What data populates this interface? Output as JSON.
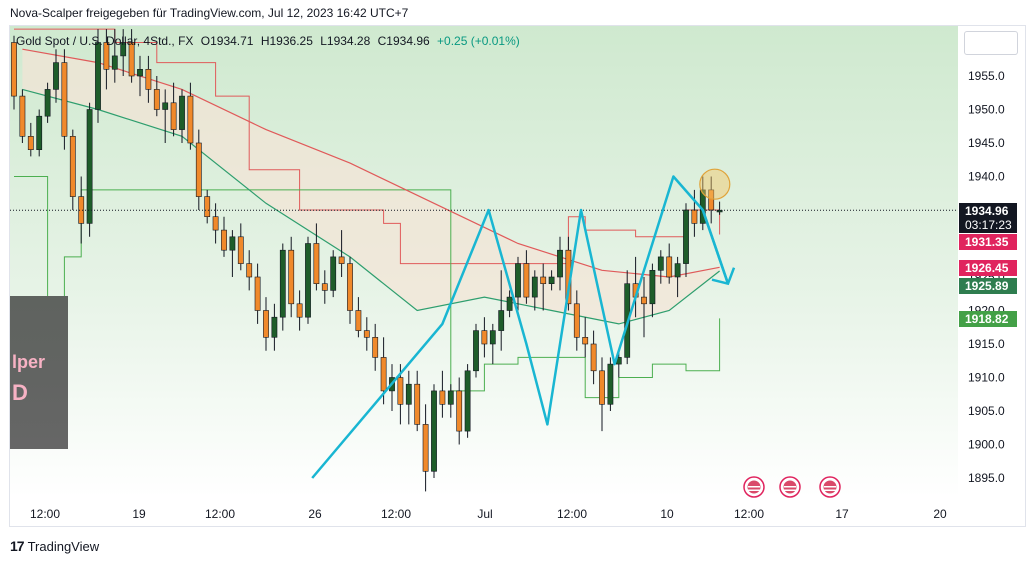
{
  "header": "Nova-Scalper freigegeben für TradingView.com, Jul 12, 2023 16:42 UTC+7",
  "legend": {
    "symbol": "Gold Spot / U.S. Dollar, 4Std., FX",
    "open": "O1934.71",
    "high": "H1936.25",
    "low": "L1934.28",
    "close": "C1934.96",
    "change": "+0.25 (+0.01%)"
  },
  "footer": {
    "logo": "17",
    "brand": "TradingView"
  },
  "watermark": {
    "line1": "lper",
    "line2": "D"
  },
  "colors": {
    "up": "#1e5d2a",
    "down": "#f0892b",
    "wick": "#131722",
    "pattern": "#19b6d2",
    "ma_red": "#e05a5a",
    "ma_green": "#2e9e6e",
    "label_red": "#e0245e",
    "label_darkgreen": "#2e7d4f",
    "label_green": "#43a047",
    "label_black": "#131722",
    "highlight": "#f5c563"
  },
  "chart_data": {
    "type": "candlestick",
    "symbol": "XAUUSD",
    "timeframe": "4H",
    "ylim": [
      1891,
      1962
    ],
    "yticks": [
      1955,
      1950,
      1945,
      1940,
      1935,
      1930,
      1925,
      1920,
      1915,
      1910,
      1905,
      1900,
      1895
    ],
    "xticks": [
      "12:00",
      "19",
      "12:00",
      "26",
      "12:00",
      "Jul",
      "12:00",
      "10",
      "12:00",
      "17",
      "20"
    ],
    "price_labels": [
      {
        "text": "1934.96",
        "sub": "03:17:23",
        "value": 1934.96,
        "color": "label_black"
      },
      {
        "text": "1931.35",
        "value": 1931.35,
        "color": "label_red"
      },
      {
        "text": "1926.45",
        "value": 1926.45,
        "color": "label_red"
      },
      {
        "text": "1925.89",
        "value": 1925.89,
        "color": "label_darkgreen"
      },
      {
        "text": "1918.82",
        "value": 1918.82,
        "color": "label_green"
      }
    ],
    "candles": [
      [
        1960,
        1961,
        1950,
        1952
      ],
      [
        1952,
        1953,
        1945,
        1946
      ],
      [
        1946,
        1948,
        1943,
        1944
      ],
      [
        1944,
        1950,
        1943,
        1949
      ],
      [
        1949,
        1954,
        1948,
        1953
      ],
      [
        1953,
        1959,
        1951,
        1957
      ],
      [
        1957,
        1959,
        1944,
        1946
      ],
      [
        1946,
        1947,
        1935,
        1937
      ],
      [
        1937,
        1940,
        1930,
        1933
      ],
      [
        1933,
        1951,
        1931,
        1950
      ],
      [
        1950,
        1962,
        1948,
        1960
      ],
      [
        1960,
        1962,
        1953,
        1956
      ],
      [
        1956,
        1962,
        1954,
        1958
      ],
      [
        1958,
        1962,
        1955,
        1960
      ],
      [
        1960,
        1962,
        1954,
        1955
      ],
      [
        1955,
        1958,
        1952,
        1956
      ],
      [
        1956,
        1958,
        1951,
        1953
      ],
      [
        1953,
        1955,
        1949,
        1950
      ],
      [
        1950,
        1953,
        1945,
        1951
      ],
      [
        1951,
        1954,
        1946,
        1947
      ],
      [
        1947,
        1953,
        1945,
        1952
      ],
      [
        1952,
        1954,
        1944,
        1945
      ],
      [
        1945,
        1947,
        1935,
        1937
      ],
      [
        1937,
        1938,
        1933,
        1934
      ],
      [
        1934,
        1936,
        1930,
        1932
      ],
      [
        1932,
        1934,
        1928,
        1929
      ],
      [
        1929,
        1932,
        1925,
        1931
      ],
      [
        1931,
        1933,
        1926,
        1927
      ],
      [
        1927,
        1929,
        1923,
        1925
      ],
      [
        1925,
        1927,
        1918,
        1920
      ],
      [
        1920,
        1922,
        1914,
        1916
      ],
      [
        1916,
        1921,
        1914,
        1919
      ],
      [
        1919,
        1930,
        1917,
        1929
      ],
      [
        1929,
        1931,
        1919,
        1921
      ],
      [
        1921,
        1923,
        1917,
        1919
      ],
      [
        1919,
        1931,
        1918,
        1930
      ],
      [
        1930,
        1933,
        1923,
        1924
      ],
      [
        1924,
        1926,
        1921,
        1923
      ],
      [
        1923,
        1929,
        1922,
        1928
      ],
      [
        1928,
        1932,
        1925,
        1927
      ],
      [
        1927,
        1928,
        1918,
        1920
      ],
      [
        1920,
        1922,
        1916,
        1917
      ],
      [
        1917,
        1919,
        1914,
        1916
      ],
      [
        1916,
        1918,
        1911,
        1913
      ],
      [
        1913,
        1916,
        1906,
        1908
      ],
      [
        1908,
        1912,
        1905,
        1910
      ],
      [
        1910,
        1912,
        1903,
        1906
      ],
      [
        1906,
        1911,
        1903,
        1909
      ],
      [
        1909,
        1911,
        1902,
        1903
      ],
      [
        1903,
        1906,
        1893,
        1896
      ],
      [
        1896,
        1909,
        1895,
        1908
      ],
      [
        1908,
        1911,
        1904,
        1906
      ],
      [
        1906,
        1909,
        1904,
        1908
      ],
      [
        1908,
        1910,
        1900,
        1902
      ],
      [
        1902,
        1912,
        1901,
        1911
      ],
      [
        1911,
        1918,
        1910,
        1917
      ],
      [
        1917,
        1919,
        1913,
        1915
      ],
      [
        1915,
        1918,
        1912,
        1917
      ],
      [
        1917,
        1926,
        1914,
        1920
      ],
      [
        1920,
        1923,
        1919,
        1922
      ],
      [
        1922,
        1928,
        1920,
        1927
      ],
      [
        1927,
        1929,
        1921,
        1922
      ],
      [
        1922,
        1926,
        1920,
        1925
      ],
      [
        1925,
        1927,
        1920,
        1924
      ],
      [
        1924,
        1926,
        1923,
        1925
      ],
      [
        1925,
        1931,
        1923,
        1929
      ],
      [
        1929,
        1931,
        1920,
        1921
      ],
      [
        1921,
        1923,
        1914,
        1916
      ],
      [
        1916,
        1919,
        1913,
        1915
      ],
      [
        1915,
        1917,
        1909,
        1911
      ],
      [
        1911,
        1913,
        1902,
        1906
      ],
      [
        1906,
        1913,
        1905,
        1912
      ],
      [
        1912,
        1914,
        1910,
        1913
      ],
      [
        1913,
        1926,
        1912,
        1924
      ],
      [
        1924,
        1928,
        1919,
        1922
      ],
      [
        1922,
        1925,
        1916,
        1921
      ],
      [
        1921,
        1927,
        1919,
        1926
      ],
      [
        1926,
        1929,
        1924,
        1928
      ],
      [
        1928,
        1930,
        1924,
        1925
      ],
      [
        1925,
        1928,
        1922,
        1927
      ],
      [
        1927,
        1936,
        1925,
        1935
      ],
      [
        1935,
        1938,
        1931,
        1933
      ],
      [
        1933,
        1940,
        1932,
        1938
      ],
      [
        1938,
        1940,
        1933,
        1935
      ],
      [
        1934.71,
        1936.25,
        1934.28,
        1934.96
      ]
    ],
    "ma_red": [
      [
        1,
        1959
      ],
      [
        10,
        1957
      ],
      [
        20,
        1953
      ],
      [
        30,
        1947
      ],
      [
        40,
        1942
      ],
      [
        50,
        1936
      ],
      [
        60,
        1930
      ],
      [
        70,
        1926
      ],
      [
        78,
        1925
      ],
      [
        84,
        1926.45
      ]
    ],
    "ma_green": [
      [
        1,
        1953
      ],
      [
        10,
        1950
      ],
      [
        20,
        1946
      ],
      [
        30,
        1936
      ],
      [
        40,
        1928
      ],
      [
        48,
        1920
      ],
      [
        56,
        1922
      ],
      [
        64,
        1920
      ],
      [
        72,
        1918
      ],
      [
        78,
        1920
      ],
      [
        84,
        1925.89
      ]
    ],
    "trail_red": [
      [
        0,
        1962
      ],
      [
        12,
        1960
      ],
      [
        17,
        1957
      ],
      [
        24,
        1952
      ],
      [
        28,
        1941
      ],
      [
        34,
        1935
      ],
      [
        40,
        1935
      ],
      [
        44,
        1933
      ],
      [
        46,
        1927
      ],
      [
        52,
        1927
      ],
      [
        54,
        1927
      ],
      [
        60,
        1927
      ],
      [
        66,
        1934
      ],
      [
        68,
        1932
      ],
      [
        74,
        1931
      ],
      [
        76,
        1931
      ],
      [
        80,
        1935
      ],
      [
        84,
        1931.35
      ]
    ],
    "trail_green": [
      [
        0,
        1940
      ],
      [
        4,
        1921
      ],
      [
        6,
        1928
      ],
      [
        8,
        1938
      ],
      [
        14,
        1938
      ],
      [
        14,
        1938
      ],
      [
        20,
        1938
      ],
      [
        52,
        1908
      ],
      [
        56,
        1912
      ],
      [
        60,
        1913
      ],
      [
        64,
        1913
      ],
      [
        68,
        1907
      ],
      [
        72,
        1910
      ],
      [
        76,
        1912
      ],
      [
        80,
        1911
      ],
      [
        84,
        1918.82
      ]
    ],
    "pattern": [
      [
        35.5,
        1895
      ],
      [
        51,
        1918
      ],
      [
        56.5,
        1935
      ],
      [
        61,
        1915
      ],
      [
        63.5,
        1903
      ],
      [
        67.5,
        1935
      ],
      [
        71.5,
        1912
      ],
      [
        78.5,
        1940
      ],
      [
        82,
        1935
      ],
      [
        85,
        1924
      ],
      [
        81,
        1926
      ]
    ],
    "highlight_circle": {
      "x": 82,
      "y": 1939
    },
    "events": [
      {
        "x": 82
      },
      {
        "x": 86
      },
      {
        "x": 90
      }
    ]
  }
}
